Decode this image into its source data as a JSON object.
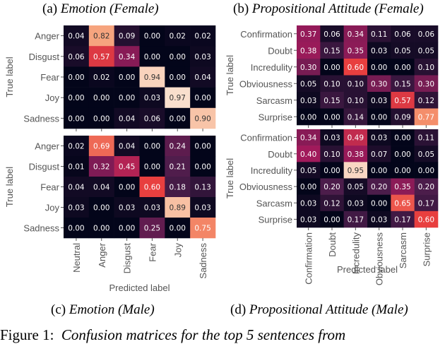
{
  "captions": {
    "a": {
      "prefix": "(a)",
      "title": "Emotion (Female)"
    },
    "b": {
      "prefix": "(b)",
      "title": "Propositional Attitude (Female)"
    },
    "c": {
      "prefix": "(c)",
      "title": "Emotion (Male)"
    },
    "d": {
      "prefix": "(d)",
      "title": "Propositional Attitude (Male)"
    }
  },
  "figure_caption": {
    "label": "Figure 1:",
    "text": "Confusion matrices for the top 5 sentences from"
  },
  "colormap": {
    "name": "rocket",
    "stops": [
      "#03051a",
      "#4c1d4b",
      "#a11a5b",
      "#e83f3f",
      "#f69c73",
      "#faebdd"
    ],
    "vmin": 0,
    "vmax": 1
  },
  "chart_data": [
    {
      "type": "heatmap",
      "id": "a",
      "ylabel": "True label",
      "xlabel": "",
      "rows": [
        "Anger",
        "Disgust",
        "Fear",
        "Joy",
        "Sadness"
      ],
      "cols": [
        "Neutral",
        "Anger",
        "Disgust",
        "Fear",
        "Joy",
        "Sadness"
      ],
      "show_col_labels": false,
      "values": [
        [
          0.04,
          0.82,
          0.09,
          0.0,
          0.02,
          0.02
        ],
        [
          0.06,
          0.57,
          0.34,
          0.0,
          0.0,
          0.03
        ],
        [
          0.0,
          0.02,
          0.0,
          0.94,
          0.0,
          0.04
        ],
        [
          0.0,
          0.0,
          0.0,
          0.03,
          0.97,
          0.0
        ],
        [
          0.0,
          0.0,
          0.04,
          0.06,
          0.0,
          0.9
        ]
      ]
    },
    {
      "type": "heatmap",
      "id": "c",
      "ylabel": "True label",
      "xlabel": "Predicted label",
      "rows": [
        "Anger",
        "Disgust",
        "Fear",
        "Joy",
        "Sadness"
      ],
      "cols": [
        "Neutral",
        "Anger",
        "Disgust",
        "Fear",
        "Joy",
        "Sadness"
      ],
      "show_col_labels": true,
      "values": [
        [
          0.02,
          0.69,
          0.04,
          0.0,
          0.24,
          0.0
        ],
        [
          0.01,
          0.32,
          0.45,
          0.0,
          0.21,
          0.0
        ],
        [
          0.04,
          0.04,
          0.0,
          0.6,
          0.18,
          0.13
        ],
        [
          0.03,
          0.0,
          0.03,
          0.03,
          0.89,
          0.03
        ],
        [
          0.0,
          0.0,
          0.0,
          0.25,
          0.0,
          0.75
        ]
      ]
    },
    {
      "type": "heatmap",
      "id": "b",
      "ylabel": "True label",
      "xlabel": "",
      "rows": [
        "Confirmation",
        "Doubt",
        "Incredulity",
        "Obviousness",
        "Sarcasm",
        "Surprise"
      ],
      "cols": [
        "Confirmation",
        "Doubt",
        "Incredulity",
        "Obviousness",
        "Sarcasm",
        "Surprise"
      ],
      "show_col_labels": false,
      "values": [
        [
          0.37,
          0.06,
          0.34,
          0.11,
          0.06,
          0.06
        ],
        [
          0.38,
          0.15,
          0.35,
          0.03,
          0.05,
          0.05
        ],
        [
          0.3,
          0.0,
          0.6,
          0.0,
          0.0,
          0.1
        ],
        [
          0.05,
          0.1,
          0.1,
          0.3,
          0.15,
          0.3
        ],
        [
          0.03,
          0.15,
          0.1,
          0.03,
          0.57,
          0.12
        ],
        [
          0.0,
          0.0,
          0.14,
          0.0,
          0.09,
          0.77
        ]
      ]
    },
    {
      "type": "heatmap",
      "id": "d",
      "ylabel": "True label",
      "xlabel": "Predicted label",
      "rows": [
        "Confirmation",
        "Doubt",
        "Incredulity",
        "Obviousness",
        "Sarcasm",
        "Surprise"
      ],
      "cols": [
        "Confirmation",
        "Doubt",
        "Incredulity",
        "Obviousness",
        "Sarcasm",
        "Surprise"
      ],
      "show_col_labels": true,
      "values": [
        [
          0.34,
          0.03,
          0.49,
          0.03,
          0.0,
          0.11
        ],
        [
          0.4,
          0.1,
          0.38,
          0.07,
          0.0,
          0.05
        ],
        [
          0.05,
          0.0,
          0.95,
          0.0,
          0.0,
          0.0
        ],
        [
          0.0,
          0.2,
          0.05,
          0.2,
          0.35,
          0.2
        ],
        [
          0.03,
          0.12,
          0.03,
          0.0,
          0.65,
          0.17
        ],
        [
          0.03,
          0.0,
          0.17,
          0.03,
          0.17,
          0.6
        ]
      ]
    }
  ]
}
